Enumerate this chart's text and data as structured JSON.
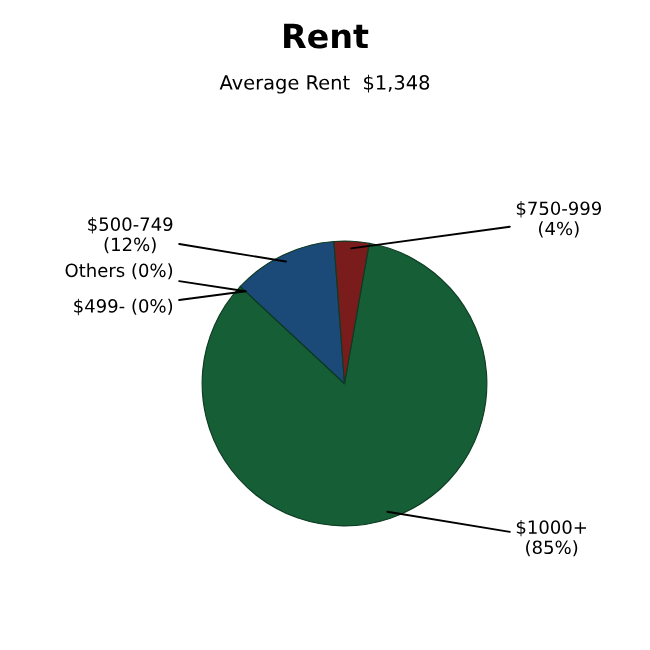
{
  "chart_data": {
    "type": "pie",
    "title": "Rent",
    "subtitle": "Average Rent  $1,348",
    "categories": [
      "$1000+",
      "Others",
      "$499-",
      "$500-749",
      "$750-999"
    ],
    "values": [
      85,
      0,
      0,
      12,
      4
    ],
    "value_labels": [
      "(85%)",
      "(0%)",
      "(0%)",
      "(12%)",
      "(4%)"
    ],
    "colors": [
      "#165e36",
      "#8a8a8a",
      "#5a7a9a",
      "#1c4a78",
      "#7a1c1c"
    ]
  }
}
